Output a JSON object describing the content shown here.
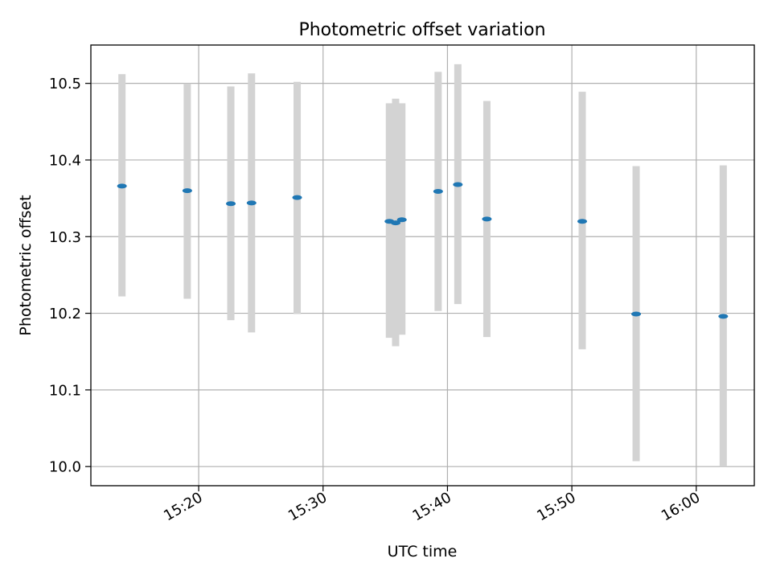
{
  "chart_data": {
    "type": "scatter",
    "title": "Photometric offset variation",
    "xlabel": "UTC time",
    "ylabel": "Photometric offset",
    "x_ticks": [
      "15:20",
      "15:30",
      "15:40",
      "15:50",
      "16:00"
    ],
    "y_ticks": [
      "10.0",
      "10.1",
      "10.2",
      "10.3",
      "10.4",
      "10.5"
    ],
    "xlim": [
      "15:11:20",
      "16:04:40"
    ],
    "ylim": [
      9.975,
      10.55
    ],
    "grid": true,
    "series": [
      {
        "marker_color": "#1f77b4",
        "errorbar_color": "#d3d3d3",
        "points": [
          {
            "x": "15:13:50",
            "y": 10.366,
            "low": 10.222,
            "high": 10.512
          },
          {
            "x": "15:19:05",
            "y": 10.36,
            "low": 10.219,
            "high": 10.5
          },
          {
            "x": "15:22:35",
            "y": 10.343,
            "low": 10.191,
            "high": 10.496
          },
          {
            "x": "15:24:15",
            "y": 10.344,
            "low": 10.175,
            "high": 10.513
          },
          {
            "x": "15:27:55",
            "y": 10.351,
            "low": 10.199,
            "high": 10.502
          },
          {
            "x": "15:35:20",
            "y": 10.32,
            "low": 10.168,
            "high": 10.474
          },
          {
            "x": "15:35:50",
            "y": 10.318,
            "low": 10.157,
            "high": 10.48
          },
          {
            "x": "15:36:20",
            "y": 10.322,
            "low": 10.172,
            "high": 10.474
          },
          {
            "x": "15:39:15",
            "y": 10.359,
            "low": 10.203,
            "high": 10.515
          },
          {
            "x": "15:40:50",
            "y": 10.368,
            "low": 10.212,
            "high": 10.525
          },
          {
            "x": "15:43:10",
            "y": 10.323,
            "low": 10.169,
            "high": 10.477
          },
          {
            "x": "15:50:50",
            "y": 10.32,
            "low": 10.153,
            "high": 10.489
          },
          {
            "x": "15:55:10",
            "y": 10.199,
            "low": 10.007,
            "high": 10.392
          },
          {
            "x": "16:02:10",
            "y": 10.196,
            "low": 10.0,
            "high": 10.393
          }
        ]
      }
    ]
  }
}
